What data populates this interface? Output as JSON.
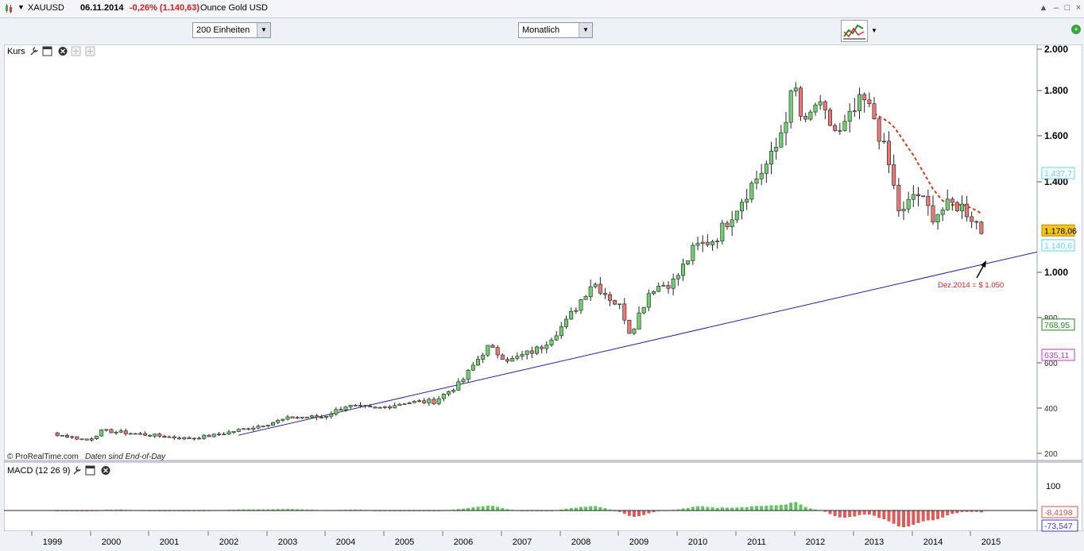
{
  "titlebar": {
    "symbol": "XAUUSD",
    "date": "06.11.2014",
    "change": "-0,26% (1.140,63)",
    "instrument": "Ounce Gold USD"
  },
  "toolbar": {
    "units_select": "200 Einheiten",
    "period_select": "Monatlich"
  },
  "price_panel": {
    "label": "Kurs",
    "copyright": "© ProRealTime.com",
    "eod_note": "Daten sind End-of-Day",
    "annotation": "Dez.2014 = $ 1.050",
    "y_ticks": [
      "2.000",
      "1.800",
      "1.600",
      "1.400",
      "1.000",
      "800",
      "600",
      "400",
      "200"
    ],
    "value_tags": [
      {
        "id": "bb-upper",
        "text": "1.437,7",
        "color": "#5ad6f0"
      },
      {
        "id": "last",
        "text": "1.178,06",
        "color": "#f5c518"
      },
      {
        "id": "bb-lower",
        "text": "1.140,6",
        "color": "#5ad6f0"
      },
      {
        "id": "ma-long",
        "text": "768,95",
        "color": "#1e8c1e"
      },
      {
        "id": "ma-200",
        "text": "635,11",
        "color": "#c23ac2"
      }
    ]
  },
  "macd_panel": {
    "label": "MACD (12 26 9)",
    "y_tick": "100",
    "value_tags": [
      {
        "id": "hist",
        "text": "-8,4198",
        "color": "#e05050"
      },
      {
        "id": "signal",
        "text": "-73,547",
        "color": "#3a3ad0"
      }
    ]
  },
  "x_axis": [
    "1999",
    "2000",
    "2001",
    "2002",
    "2003",
    "2004",
    "2005",
    "2006",
    "2007",
    "2008",
    "2009",
    "2010",
    "2011",
    "2012",
    "2013",
    "2014",
    "2015"
  ],
  "colors": {
    "candle_up": "#6fcf6f",
    "candle_down": "#e87878",
    "bollinger": "#5ad6f0",
    "ma_short": "#1a35d8",
    "trendline": "#1f1fa0",
    "ma_long": "#1e8c1e",
    "ma_200": "#c23ac2"
  },
  "chart_data": {
    "type": "candlestick",
    "x": [
      "1999",
      "2000",
      "2001",
      "2002",
      "2003",
      "2004",
      "2005",
      "2006",
      "2007",
      "2008",
      "2009",
      "2010",
      "2011",
      "2012",
      "2013",
      "2014"
    ],
    "series": [
      {
        "values": [
          288,
          282,
          272,
          318,
          380,
          436,
          458,
          575,
          700,
          880,
          920,
          1225,
          1630,
          1680,
          1380,
          1200
        ]
      }
    ],
    "ylim": [
      200,
      2000
    ],
    "ticks_y": [
      200,
      400,
      600,
      800,
      1000,
      1400,
      1600,
      1800,
      2000
    ]
  }
}
